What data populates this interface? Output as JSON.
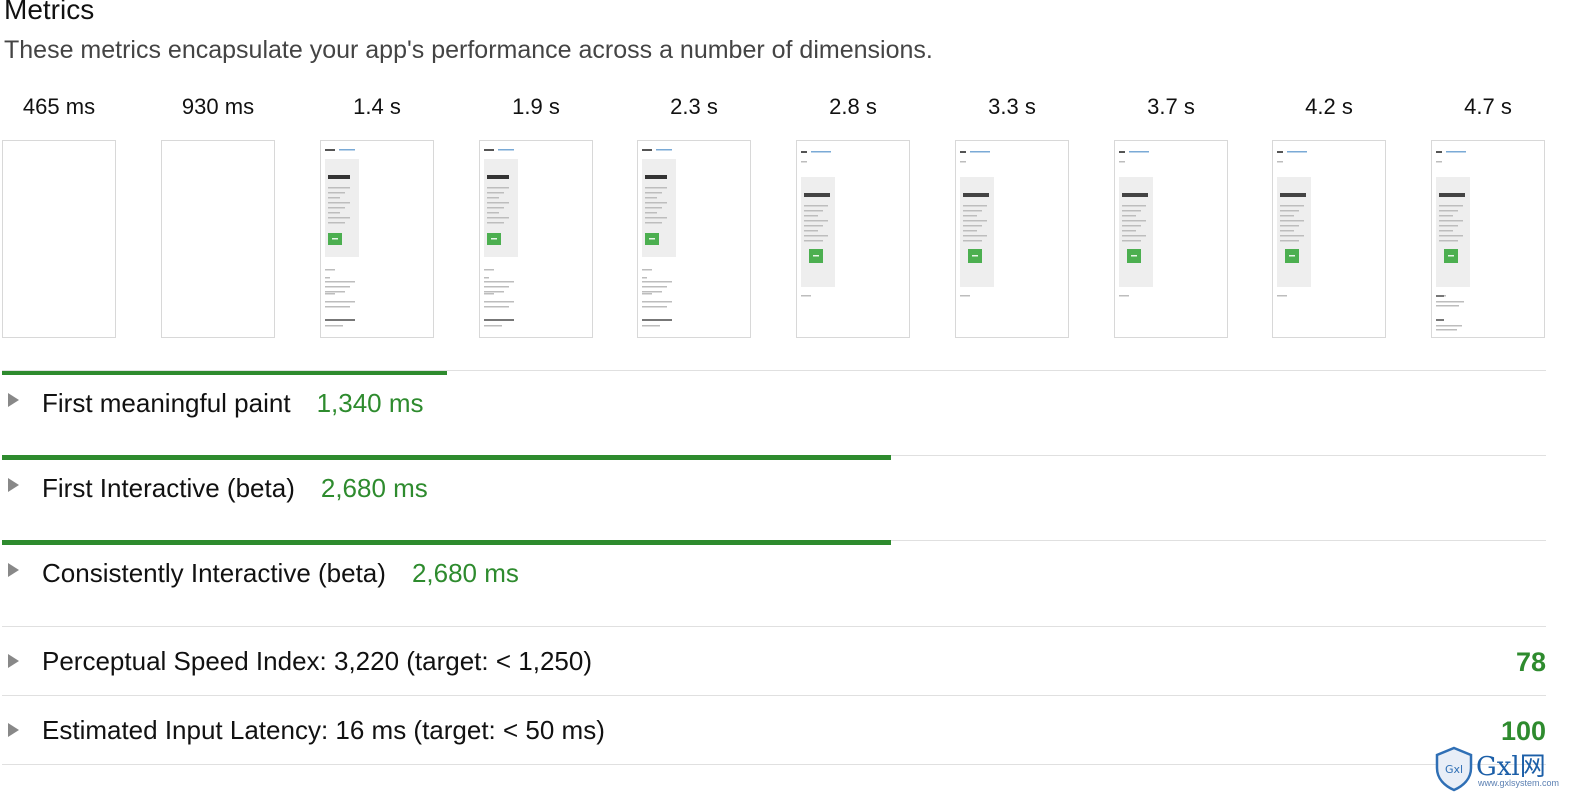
{
  "section": {
    "title": "Metrics",
    "subtitle": "These metrics encapsulate your app's performance across a number of dimensions."
  },
  "filmstrip": [
    {
      "time": "465 ms",
      "state": "blank"
    },
    {
      "time": "930 ms",
      "state": "blank"
    },
    {
      "time": "1.4 s",
      "state": "first"
    },
    {
      "time": "1.9 s",
      "state": "first"
    },
    {
      "time": "2.3 s",
      "state": "first"
    },
    {
      "time": "2.8 s",
      "state": "final"
    },
    {
      "time": "3.3 s",
      "state": "final"
    },
    {
      "time": "3.7 s",
      "state": "final"
    },
    {
      "time": "4.2 s",
      "state": "final"
    },
    {
      "time": "4.7 s",
      "state": "final-plus"
    }
  ],
  "metrics": [
    {
      "label": "First meaningful paint",
      "value": "1,340 ms",
      "bar_fraction": 0.285
    },
    {
      "label": "First Interactive (beta)",
      "value": "2,680 ms",
      "bar_fraction": 0.57
    },
    {
      "label": "Consistently Interactive (beta)",
      "value": "2,680 ms",
      "bar_fraction": 0.57
    }
  ],
  "scored_metrics": [
    {
      "label": "Perceptual Speed Index: 3,220 (target: < 1,250)",
      "score": "78"
    },
    {
      "label": "Estimated Input Latency: 16 ms (target: < 50 ms)",
      "score": "100"
    }
  ],
  "watermark": {
    "brand": "Gxl网",
    "badge": "Gxl",
    "url": "www.gxlsystem.com"
  },
  "colors": {
    "pass_green": "#2e8b2e",
    "button_green": "#4caf50",
    "watermark_blue": "#1c5fa8"
  },
  "icons": {
    "expand": "triangle-right-icon",
    "watermark": "shield-icon"
  }
}
